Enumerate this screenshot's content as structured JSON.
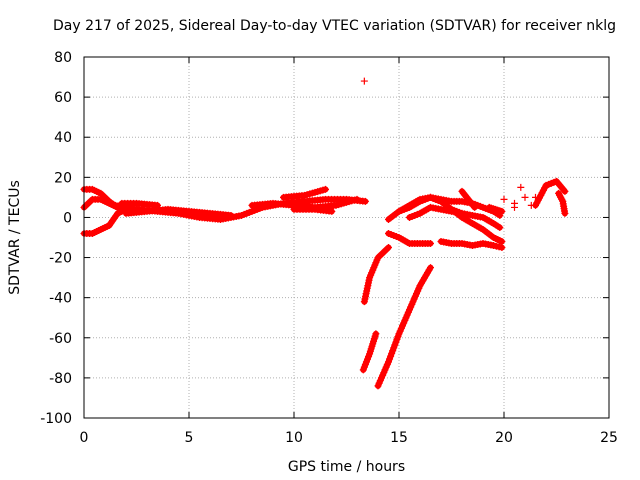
{
  "chart_data": {
    "type": "scatter",
    "title": "Day 217 of 2025, Sidereal Day-to-day VTEC variation (SDTVAR) for receiver nklg",
    "xlabel": "GPS time / hours",
    "ylabel": "SDTVAR / TECUs",
    "xlim": [
      0,
      25
    ],
    "ylim": [
      -100,
      80
    ],
    "xticks": [
      0,
      5,
      10,
      15,
      20,
      25
    ],
    "yticks": [
      -100,
      -80,
      -60,
      -40,
      -20,
      0,
      20,
      40,
      60,
      80
    ],
    "grid": true,
    "marker": "+",
    "colors": {
      "series": "#ff0000",
      "grid": "#b0b0b0",
      "axis": "#000000"
    },
    "tracks": [
      {
        "name": "track-1",
        "x": [
          0,
          0.4,
          0.8,
          1.2,
          1.6
        ],
        "y": [
          14,
          14,
          12,
          8,
          5
        ]
      },
      {
        "name": "track-2",
        "x": [
          0,
          0.4,
          0.8,
          1.2,
          1.6,
          2.0
        ],
        "y": [
          -8,
          -8,
          -6,
          -4,
          2,
          4
        ]
      },
      {
        "name": "track-3",
        "x": [
          0,
          0.4,
          0.8,
          1.2,
          1.6
        ],
        "y": [
          5,
          9,
          9,
          7,
          5
        ]
      },
      {
        "name": "track-4",
        "x": [
          1.5,
          2.5,
          3.5,
          4.5,
          5.5,
          6.5,
          7.5,
          8.5,
          9.5,
          10.5,
          11.5,
          12.5,
          13.4
        ],
        "y": [
          6,
          4,
          3,
          2,
          0,
          -1,
          1,
          5,
          7,
          8,
          9,
          9,
          8
        ]
      },
      {
        "name": "track-5",
        "x": [
          2.0,
          3.0,
          4.0,
          5.0,
          6.0,
          7.0
        ],
        "y": [
          2,
          3,
          4,
          3,
          2,
          1
        ]
      },
      {
        "name": "track-6",
        "x": [
          1.8,
          2.5,
          3.5
        ],
        "y": [
          7,
          7,
          6
        ]
      },
      {
        "name": "track-7",
        "x": [
          8.0,
          9.0,
          10.0,
          11.0,
          12.0,
          13.0
        ],
        "y": [
          6,
          7,
          6,
          5,
          6,
          9
        ]
      },
      {
        "name": "track-8",
        "x": [
          9.5,
          10.5,
          11.5
        ],
        "y": [
          10,
          11,
          14
        ]
      },
      {
        "name": "track-9",
        "x": [
          10.0,
          11.0,
          11.8
        ],
        "y": [
          4,
          4,
          3
        ]
      },
      {
        "name": "track-10",
        "x": [
          13.35,
          13.6,
          14.0,
          14.5
        ],
        "y": [
          -42,
          -30,
          -20,
          -15
        ]
      },
      {
        "name": "track-11",
        "x": [
          13.3,
          13.6,
          13.9
        ],
        "y": [
          -76,
          -68,
          -58
        ]
      },
      {
        "name": "track-12",
        "x": [
          14.0,
          14.5,
          15.0,
          15.5,
          16.0,
          16.5
        ],
        "y": [
          -84,
          -72,
          -58,
          -46,
          -34,
          -25
        ]
      },
      {
        "name": "track-13",
        "x": [
          14.5,
          15.0,
          15.5,
          16.0,
          16.5
        ],
        "y": [
          -8,
          -10,
          -13,
          -13,
          -13
        ]
      },
      {
        "name": "track-14",
        "x": [
          14.5,
          15.0,
          15.5,
          16.0,
          16.5,
          17.0,
          17.5,
          18.0
        ],
        "y": [
          -1,
          3,
          6,
          9,
          10,
          8,
          4,
          2
        ]
      },
      {
        "name": "track-15",
        "x": [
          15.0,
          15.5,
          16.0,
          16.5,
          17.0,
          17.5,
          18.0,
          18.5,
          19.0,
          19.5,
          19.8
        ],
        "y": [
          3,
          5,
          8,
          10,
          9,
          8,
          8,
          7,
          5,
          3,
          1
        ]
      },
      {
        "name": "track-16",
        "x": [
          15.5,
          16.0,
          16.5,
          17.0,
          17.5,
          18.0,
          18.5,
          19.0,
          19.5,
          19.8
        ],
        "y": [
          0,
          2,
          5,
          4,
          3,
          2,
          1,
          0,
          -3,
          -5
        ]
      },
      {
        "name": "track-17",
        "x": [
          16.5,
          17.0,
          17.5,
          18.0,
          18.5,
          19.0,
          19.5,
          19.9
        ],
        "y": [
          10,
          8,
          4,
          0,
          -3,
          -6,
          -10,
          -12
        ]
      },
      {
        "name": "track-18",
        "x": [
          17.0,
          17.5,
          18.0,
          18.5,
          19.0,
          19.5,
          19.9
        ],
        "y": [
          -12,
          -13,
          -13,
          -14,
          -13,
          -14,
          -15
        ]
      },
      {
        "name": "track-19",
        "x": [
          18.0,
          18.3,
          18.6
        ],
        "y": [
          13,
          9,
          5
        ]
      },
      {
        "name": "track-20",
        "x": [
          19.3,
          19.6,
          19.9
        ],
        "y": [
          5,
          4,
          3
        ]
      },
      {
        "name": "track-21",
        "x": [
          21.5,
          22.0,
          22.5,
          22.9
        ],
        "y": [
          6,
          16,
          18,
          13
        ]
      },
      {
        "name": "track-22",
        "x": [
          22.6,
          22.8,
          22.9
        ],
        "y": [
          12,
          8,
          2
        ]
      }
    ],
    "points": [
      {
        "x": 13.35,
        "y": 68
      },
      {
        "x": 20.0,
        "y": 9
      },
      {
        "x": 20.5,
        "y": 5
      },
      {
        "x": 20.5,
        "y": 7
      },
      {
        "x": 20.8,
        "y": 15
      },
      {
        "x": 21.0,
        "y": 10
      },
      {
        "x": 21.3,
        "y": 6
      },
      {
        "x": 21.5,
        "y": 10
      }
    ]
  }
}
